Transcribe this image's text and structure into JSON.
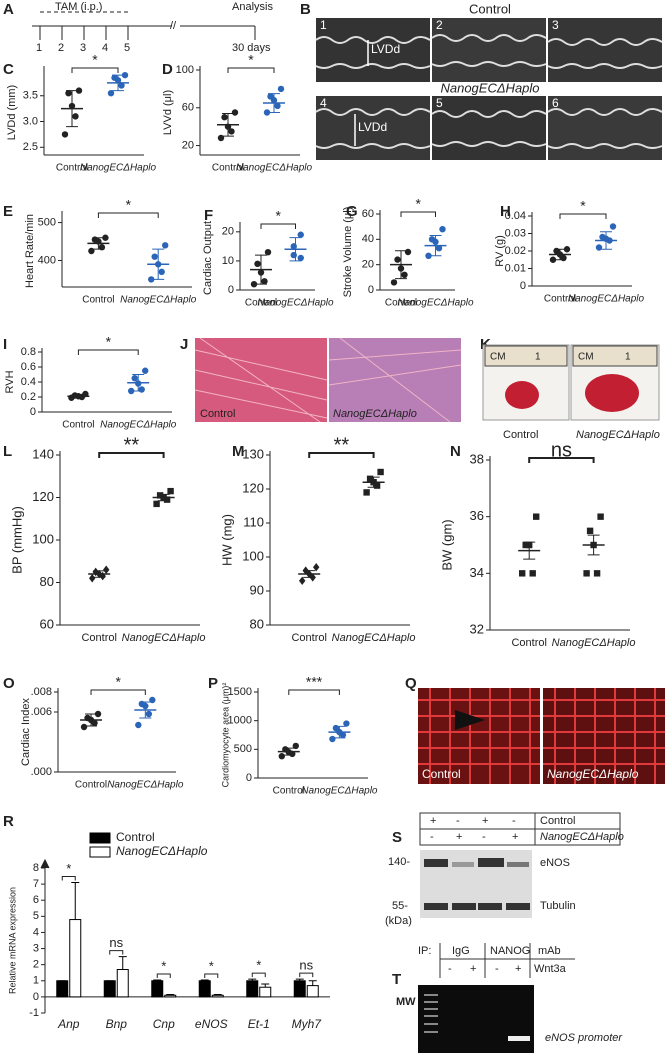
{
  "panel_labels": [
    "A",
    "B",
    "C",
    "D",
    "E",
    "F",
    "G",
    "H",
    "I",
    "J",
    "K",
    "L",
    "M",
    "N",
    "O",
    "P",
    "Q",
    "R",
    "S",
    "T"
  ],
  "timeline": {
    "treatment": "TAM (i.p.)",
    "days": [
      "1",
      "2",
      "3",
      "4",
      "5"
    ],
    "break": "//",
    "endpoint": "Analysis",
    "end_day": "30 days"
  },
  "echo": {
    "control": "Control",
    "mutant": "NanogECΔHaplo",
    "image_numbers": [
      "1",
      "2",
      "3",
      "4",
      "5",
      "6"
    ],
    "measure_labels": [
      "LVDd",
      "LVDd"
    ]
  },
  "histology": {
    "labels": [
      "Control",
      "NanogECΔHaplo"
    ]
  },
  "hearts": {
    "rulers": [
      {
        "unit": "CM",
        "mark": "1"
      },
      {
        "unit": "CM",
        "mark": "1"
      }
    ],
    "labels": [
      "Control",
      "NanogECΔHaplo"
    ]
  },
  "immunostaining": {
    "labels": [
      "Control",
      "NanogECΔHaplo"
    ]
  },
  "western": {
    "rows": [
      {
        "signs": [
          "+",
          "-",
          "+",
          "-"
        ],
        "label": "Control"
      },
      {
        "signs": [
          "-",
          "+",
          "-",
          "+"
        ],
        "label": "NanogECΔHaplo"
      }
    ],
    "markers": [
      "140-",
      "55-"
    ],
    "unit": "(kDa)",
    "bands": [
      "eNOS",
      "Tubulin"
    ]
  },
  "chip": {
    "prefix": "IP:",
    "antibodies": [
      "IgG",
      "NANOG"
    ],
    "suffix": "mAb",
    "signs": [
      "-",
      "+",
      "-",
      "+"
    ],
    "treatment": "Wnt3a",
    "ladder": "MW",
    "product": "eNOS promoter"
  },
  "chart_data": [
    {
      "type": "dot",
      "ylabel": "LVDd (mm)",
      "categories": [
        "Control",
        "NanogECΔHaplo"
      ],
      "significance": "*",
      "groups": [
        {
          "color": "#222222",
          "marker": "circle",
          "values": [
            3.6,
            3.55,
            3.3,
            3.1,
            2.75
          ],
          "mean": 3.25,
          "sd": 0.35
        },
        {
          "color": "#2b65b8",
          "marker": "circle",
          "values": [
            3.9,
            3.85,
            3.8,
            3.7,
            3.55
          ],
          "mean": 3.75,
          "sd": 0.15
        }
      ],
      "ylim": [
        2.35,
        4.0
      ],
      "yticks": [
        2.5,
        {
          "value": 3,
          "label": "3.0"
        },
        3.5
      ]
    },
    {
      "type": "dot",
      "ylabel": "LVVd (μl)",
      "categories": [
        "Control",
        "NanogECΔHaplo"
      ],
      "significance": "*",
      "groups": [
        {
          "color": "#222222",
          "marker": "circle",
          "values": [
            55,
            50,
            40,
            35,
            28
          ],
          "mean": 42,
          "sd": 12
        },
        {
          "color": "#2b65b8",
          "marker": "circle",
          "values": [
            80,
            72,
            68,
            62,
            55
          ],
          "mean": 65,
          "sd": 10
        }
      ],
      "ylim": [
        10,
        100
      ],
      "yticks": [
        20,
        60,
        100
      ]
    },
    {
      "type": "dot",
      "ylabel": "Heart Rate/min",
      "categories": [
        "Control",
        "NanogECΔHaplo"
      ],
      "significance": "*",
      "groups": [
        {
          "color": "#222222",
          "marker": "circle",
          "values": [
            460,
            455,
            450,
            435,
            425
          ],
          "mean": 445,
          "sd": 15
        },
        {
          "color": "#2b65b8",
          "marker": "circle",
          "values": [
            440,
            410,
            390,
            370,
            350
          ],
          "mean": 390,
          "sd": 40
        }
      ],
      "ylim": [
        330,
        520
      ],
      "yticks": [
        400,
        500
      ]
    },
    {
      "type": "dot",
      "ylabel": "Cardiac Output",
      "categories": [
        "Control",
        "NanogECΔHaplo"
      ],
      "significance": "*",
      "groups": [
        {
          "color": "#222222",
          "marker": "circle",
          "values": [
            13,
            9,
            6,
            3,
            2
          ],
          "mean": 7,
          "sd": 5
        },
        {
          "color": "#2b65b8",
          "marker": "circle",
          "values": [
            19,
            15,
            12,
            11
          ],
          "mean": 14,
          "sd": 4
        }
      ],
      "ylim": [
        0,
        22
      ],
      "yticks": [
        0,
        10,
        20
      ]
    },
    {
      "type": "dot",
      "ylabel": "Stroke Volume (μl)",
      "categories": [
        "Control",
        "NanogECΔHaplo"
      ],
      "significance": "*",
      "groups": [
        {
          "color": "#222222",
          "marker": "circle",
          "values": [
            30,
            24,
            17,
            12,
            6
          ],
          "mean": 20,
          "sd": 11
        },
        {
          "color": "#2b65b8",
          "marker": "circle",
          "values": [
            48,
            40,
            38,
            33,
            27
          ],
          "mean": 35,
          "sd": 8
        }
      ],
      "ylim": [
        0,
        60
      ],
      "yticks": [
        0,
        20,
        40,
        60
      ]
    },
    {
      "type": "dot",
      "ylabel": "RV (g)",
      "categories": [
        "Control",
        "NanogECΔHaplo"
      ],
      "significance": "*",
      "groups": [
        {
          "color": "#222222",
          "marker": "circle",
          "values": [
            0.021,
            0.02,
            0.018,
            0.016,
            0.015
          ],
          "mean": 0.018,
          "sd": 0.003
        },
        {
          "color": "#2b65b8",
          "marker": "circle",
          "values": [
            0.034,
            0.028,
            0.027,
            0.026,
            0.022
          ],
          "mean": 0.026,
          "sd": 0.005
        }
      ],
      "ylim": [
        0,
        0.04
      ],
      "yticks": [
        0,
        0.01,
        0.02,
        0.03,
        0.04
      ]
    },
    {
      "type": "dot",
      "ylabel": "RVH",
      "categories": [
        "Control",
        "NanogECΔHaplo"
      ],
      "significance": "*",
      "groups": [
        {
          "color": "#222222",
          "marker": "circle",
          "values": [
            0.24,
            0.22,
            0.21,
            0.2,
            0.19
          ],
          "mean": 0.21,
          "sd": 0.02
        },
        {
          "color": "#2b65b8",
          "marker": "circle",
          "values": [
            0.55,
            0.45,
            0.38,
            0.3,
            0.28
          ],
          "mean": 0.39,
          "sd": 0.11
        }
      ],
      "ylim": [
        0,
        0.8
      ],
      "yticks": [
        0,
        0.2,
        0.4,
        0.6,
        0.8
      ]
    },
    {
      "type": "dot",
      "ylabel": "BP (mmHg)",
      "categories": [
        "Control",
        "NanogECΔHaplo"
      ],
      "significance": "**",
      "groups": [
        {
          "color": "#222222",
          "marker": "diamond",
          "values": [
            86,
            85,
            84,
            83,
            82
          ],
          "mean": 84,
          "sd": 1.5
        },
        {
          "color": "#222222",
          "marker": "square",
          "values": [
            123,
            121,
            120,
            119,
            117
          ],
          "mean": 120,
          "sd": 1.5
        }
      ],
      "ylim": [
        60,
        140
      ],
      "yticks": [
        60,
        80,
        100,
        120,
        140
      ]
    },
    {
      "type": "dot",
      "ylabel": "HW (mg)",
      "categories": [
        "Control",
        "NanogECΔHaplo"
      ],
      "significance": "**",
      "groups": [
        {
          "color": "#222222",
          "marker": "diamond",
          "values": [
            97,
            96,
            95,
            94,
            93
          ],
          "mean": 95,
          "sd": 1
        },
        {
          "color": "#222222",
          "marker": "square",
          "values": [
            125,
            123,
            122,
            121,
            119
          ],
          "mean": 122,
          "sd": 1.5
        }
      ],
      "ylim": [
        80,
        130
      ],
      "yticks": [
        80,
        90,
        100,
        110,
        120,
        130
      ]
    },
    {
      "type": "dot",
      "ylabel": "BW (gm)",
      "categories": [
        "Control",
        "NanogECΔHaplo"
      ],
      "significance": "ns",
      "groups": [
        {
          "color": "#222222",
          "marker": "square",
          "values": [
            36,
            35,
            35,
            34,
            34
          ],
          "mean": 34.8,
          "sd": 0.3
        },
        {
          "color": "#222222",
          "marker": "square",
          "values": [
            36,
            35.5,
            35,
            34,
            34
          ],
          "mean": 35,
          "sd": 0.35
        }
      ],
      "ylim": [
        32,
        38
      ],
      "yticks": [
        32,
        34,
        36,
        38
      ]
    },
    {
      "type": "dot",
      "ylabel": "Cardiac Index",
      "categories": [
        "Control",
        "NanogECΔHaplo"
      ],
      "significance": "*",
      "groups": [
        {
          "color": "#222222",
          "marker": "circle",
          "values": [
            0.0058,
            0.0054,
            0.0052,
            0.0049,
            0.0045
          ],
          "mean": 0.0052,
          "sd": 0.0006
        },
        {
          "color": "#2b65b8",
          "marker": "circle",
          "values": [
            0.0072,
            0.0068,
            0.0066,
            0.0058,
            0.0047
          ],
          "mean": 0.0062,
          "sd": 0.0008
        }
      ],
      "ylim": [
        0,
        0.008
      ],
      "yticks": [
        {
          "value": 0,
          "label": ".000"
        },
        {
          "value": 0.006,
          "label": ".006"
        },
        {
          "value": 0.008,
          "label": ".008"
        }
      ]
    },
    {
      "type": "dot",
      "ylabel": "Cardiomyocyte area (μm)²",
      "categories": [
        "Control",
        "NanogECΔHaplo"
      ],
      "significance": "***",
      "groups": [
        {
          "color": "#222222",
          "marker": "circle",
          "values": [
            560,
            500,
            450,
            420,
            380
          ],
          "mean": 460,
          "sd": 60
        },
        {
          "color": "#2b65b8",
          "marker": "circle",
          "values": [
            950,
            870,
            800,
            750,
            680
          ],
          "mean": 800,
          "sd": 100
        }
      ],
      "ylim": [
        0,
        1500
      ],
      "yticks": [
        0,
        500,
        1000,
        1500
      ]
    },
    {
      "type": "bar",
      "ylabel": "Relative mRNA expression",
      "categories": [
        "Anp",
        "Bnp",
        "Cnp",
        "eNOS",
        "Et-1",
        "Myh7"
      ],
      "series": [
        {
          "name": "Control",
          "color": "#000000",
          "values": [
            1,
            1,
            1,
            1,
            1,
            1
          ],
          "errors": [
            0,
            0,
            0.05,
            0.05,
            0.1,
            0.1
          ]
        },
        {
          "name": "NanogECΔHaplo",
          "color": "#ffffff",
          "values": [
            4.8,
            1.7,
            0.1,
            0.1,
            0.6,
            0.7
          ],
          "errors": [
            2.3,
            0.8,
            0.05,
            0.05,
            0.2,
            0.3
          ]
        }
      ],
      "significance": [
        "*",
        "ns",
        "*",
        "*",
        "*",
        "ns"
      ],
      "legend": "upper left",
      "ylim": [
        -1,
        8
      ],
      "yticks": [
        -1,
        0,
        1,
        2,
        3,
        4,
        5,
        6,
        7,
        8
      ]
    }
  ]
}
